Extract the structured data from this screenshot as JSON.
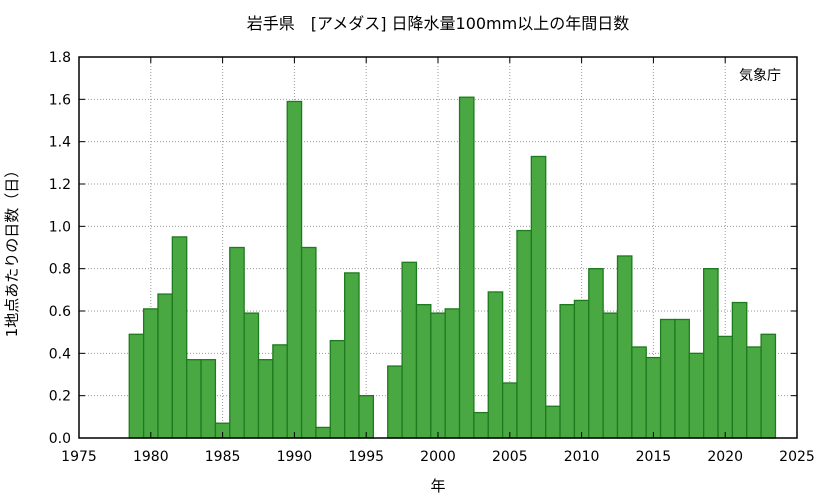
{
  "chart_data": {
    "type": "bar",
    "title": "岩手県　[アメダス] 日降水量100mm以上の年間日数",
    "xlabel": "年",
    "ylabel": "1地点あたりの日数（日）",
    "credit": "気象庁",
    "xlim": [
      1975,
      2025
    ],
    "ylim": [
      0,
      1.8
    ],
    "xticks": [
      "1975",
      "1980",
      "1985",
      "1990",
      "1995",
      "2000",
      "2005",
      "2010",
      "2015",
      "2020",
      "2025"
    ],
    "yticks": [
      "0.0",
      "0.2",
      "0.4",
      "0.6",
      "0.8",
      "1.0",
      "1.2",
      "1.4",
      "1.6",
      "1.8"
    ],
    "grid": true,
    "bar_color": "#4aa843",
    "bar_edge_color": "#1e7a1e",
    "x": [
      1979,
      1980,
      1981,
      1982,
      1983,
      1984,
      1985,
      1986,
      1987,
      1988,
      1989,
      1990,
      1991,
      1992,
      1993,
      1994,
      1995,
      1996,
      1997,
      1998,
      1999,
      2000,
      2001,
      2002,
      2003,
      2004,
      2005,
      2006,
      2007,
      2008,
      2009,
      2010,
      2011,
      2012,
      2013,
      2014,
      2015,
      2016,
      2017,
      2018,
      2019,
      2020,
      2021,
      2022,
      2023
    ],
    "values": [
      0.49,
      0.61,
      0.68,
      0.95,
      0.37,
      0.37,
      0.07,
      0.9,
      0.59,
      0.37,
      0.44,
      1.59,
      0.9,
      0.05,
      0.46,
      0.78,
      0.2,
      0.0,
      0.34,
      0.83,
      0.63,
      0.59,
      0.61,
      1.61,
      0.12,
      0.69,
      0.26,
      0.98,
      1.33,
      0.15,
      0.63,
      0.65,
      0.8,
      0.59,
      0.86,
      0.43,
      0.38,
      0.56,
      0.56,
      0.4,
      0.8,
      0.48,
      0.64,
      0.43,
      0.49
    ]
  }
}
